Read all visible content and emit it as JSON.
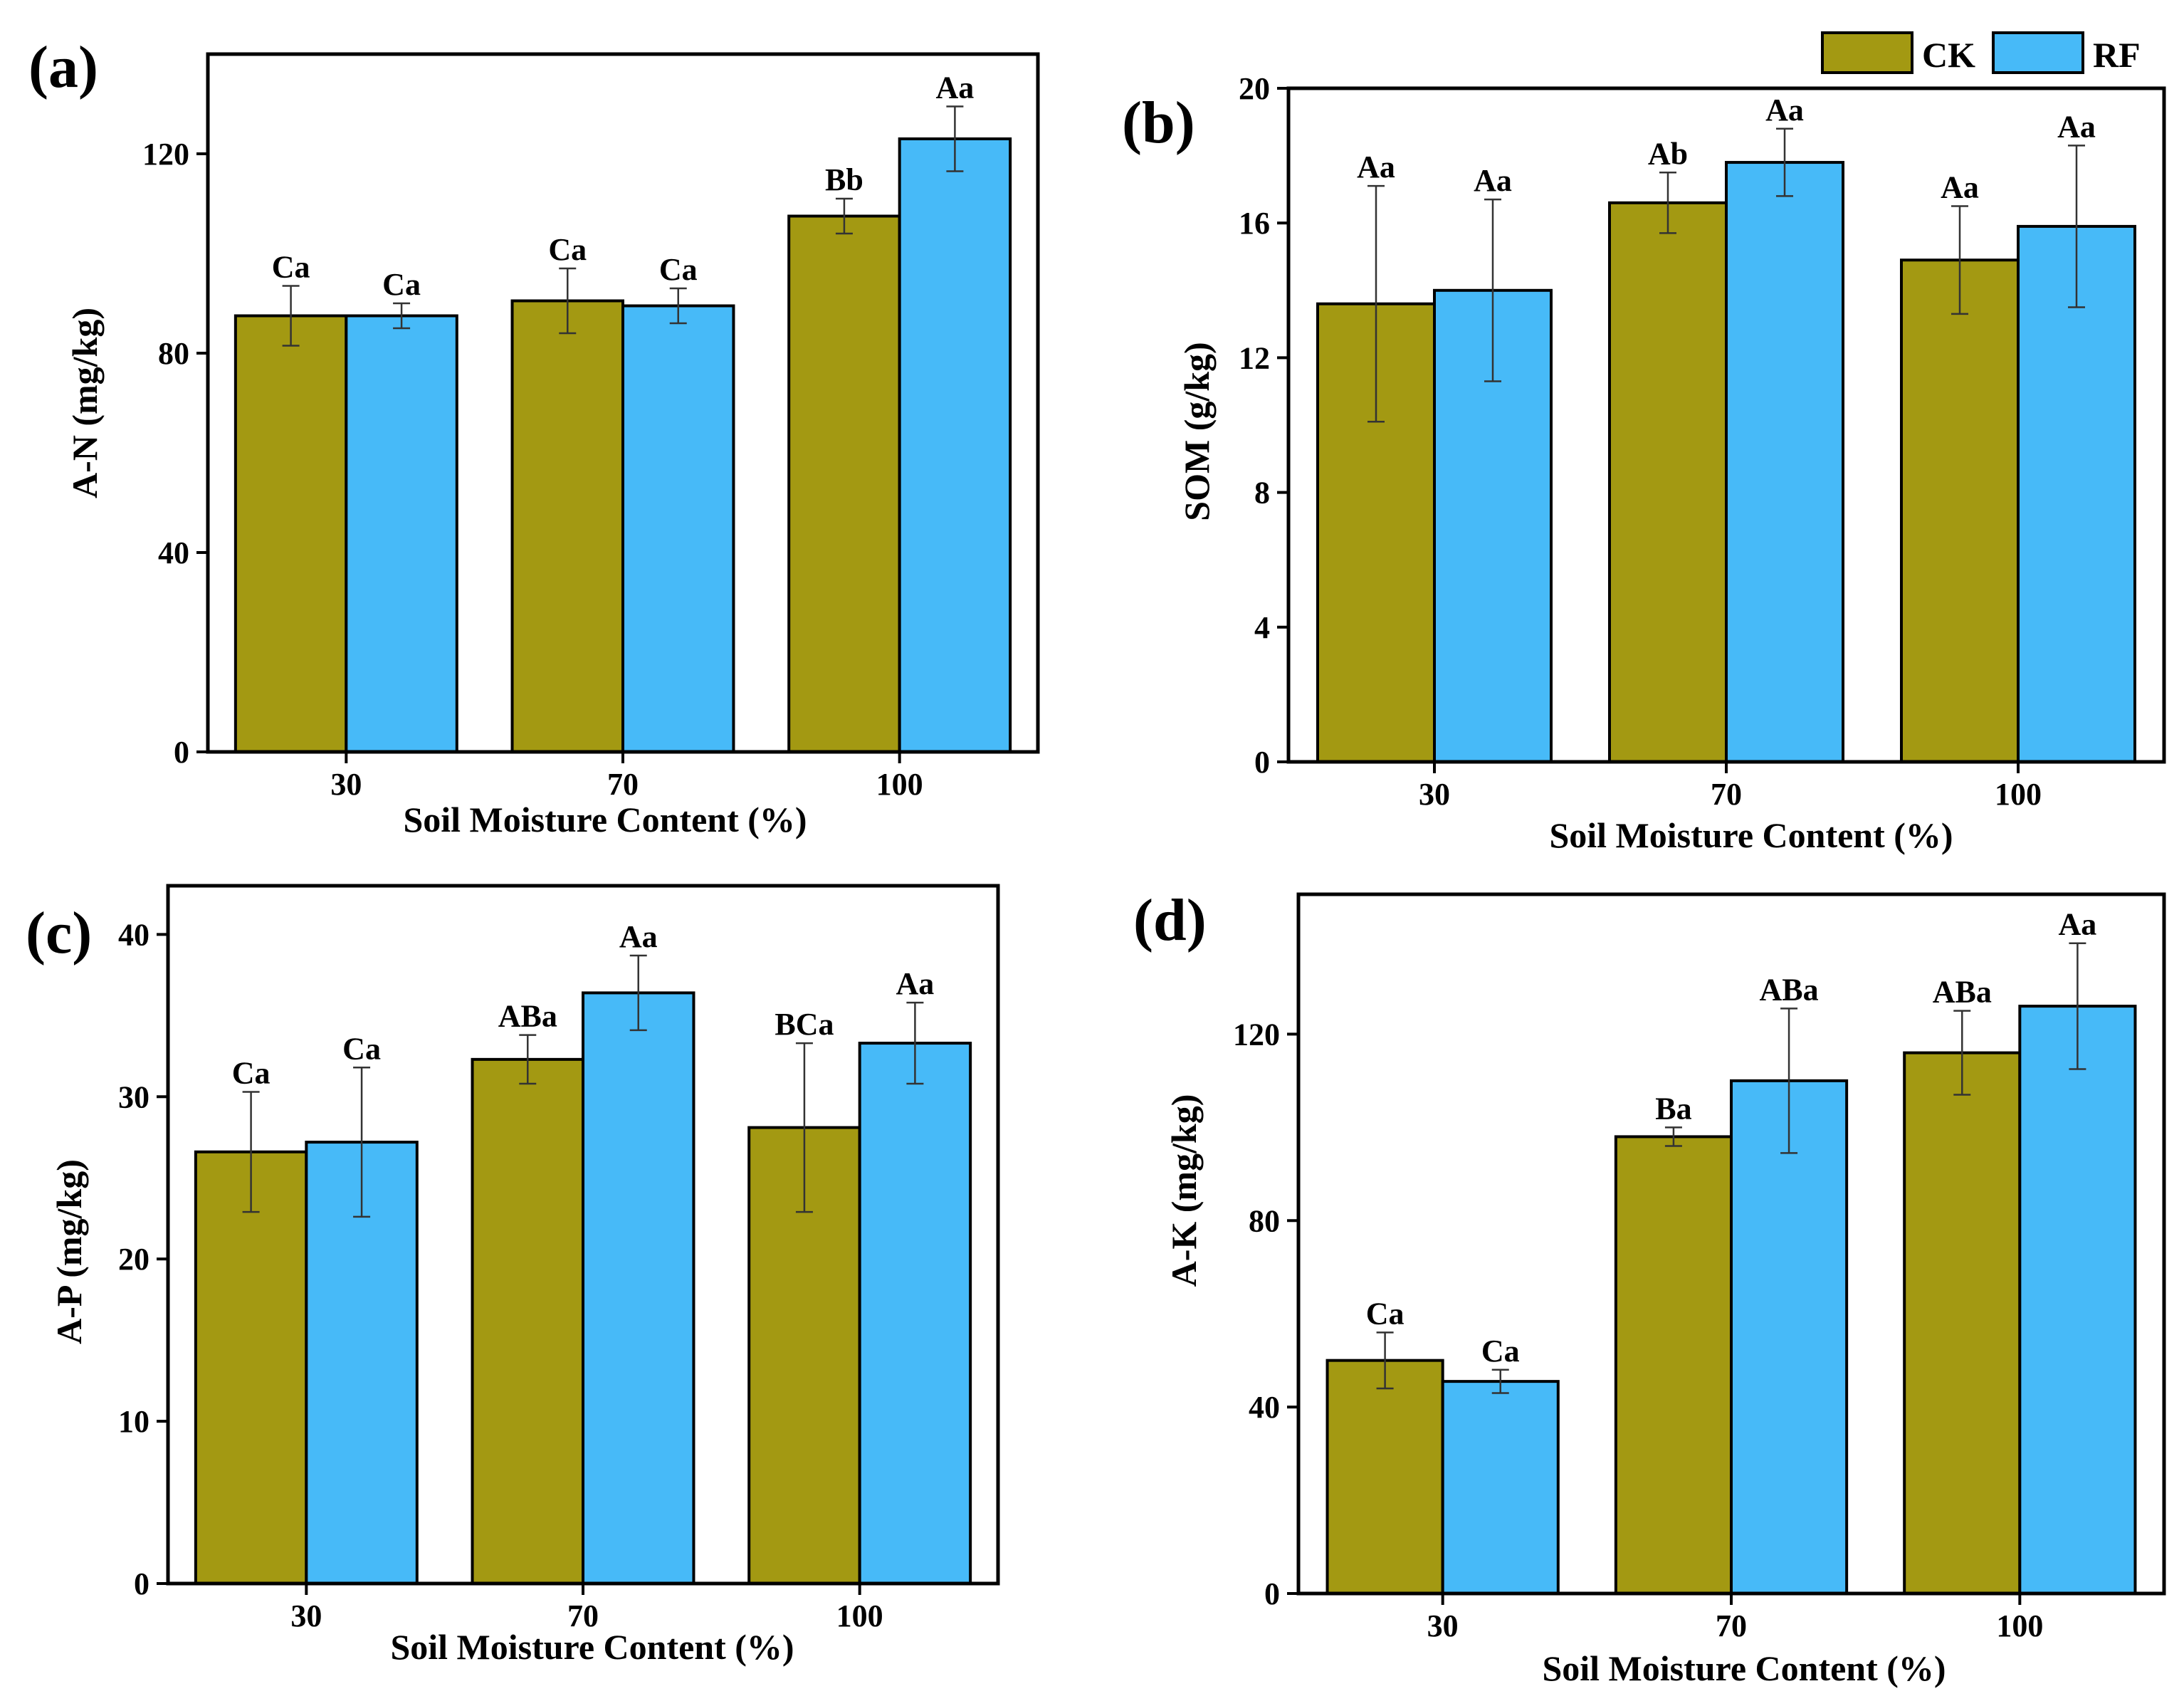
{
  "figure": {
    "legend": [
      {
        "name": "CK",
        "color": "#a39912"
      },
      {
        "name": "RF",
        "color": "#47baf8"
      }
    ]
  },
  "chart_data": [
    {
      "panel": "(a)",
      "type": "bar",
      "title": "",
      "xlabel": "Soil Moisture Content (%)",
      "ylabel": "A-N (mg/kg)",
      "categories": [
        "30",
        "70",
        "100"
      ],
      "ylim": [
        0,
        140
      ],
      "yticks": [
        0,
        40,
        80,
        120
      ],
      "series": [
        {
          "name": "CK",
          "color": "#a39912",
          "values": [
            87.5,
            90.5,
            107.5
          ],
          "errors": [
            6,
            6.5,
            3.5
          ],
          "labels": [
            "Ca",
            "Ca",
            "Bb"
          ]
        },
        {
          "name": "RF",
          "color": "#47baf8",
          "values": [
            87.5,
            89.5,
            123
          ],
          "errors": [
            2.5,
            3.5,
            6.5
          ],
          "labels": [
            "Ca",
            "Ca",
            "Aa"
          ]
        }
      ]
    },
    {
      "panel": "(b)",
      "type": "bar",
      "title": "",
      "xlabel": "Soil Moisture Content (%)",
      "ylabel": "SOM (g/kg)",
      "categories": [
        "30",
        "70",
        "100"
      ],
      "ylim": [
        0,
        20
      ],
      "yticks": [
        0,
        4,
        8,
        12,
        16,
        20
      ],
      "series": [
        {
          "name": "CK",
          "color": "#a39912",
          "values": [
            13.6,
            16.6,
            14.9
          ],
          "errors": [
            3.5,
            0.9,
            1.6
          ],
          "labels": [
            "Aa",
            "Ab",
            "Aa"
          ]
        },
        {
          "name": "RF",
          "color": "#47baf8",
          "values": [
            14.0,
            17.8,
            15.9
          ],
          "errors": [
            2.7,
            1.0,
            2.4
          ],
          "labels": [
            "Aa",
            "Aa",
            "Aa"
          ]
        }
      ]
    },
    {
      "panel": "(c)",
      "type": "bar",
      "title": "",
      "xlabel": "Soil Moisture Content (%)",
      "ylabel": "A-P (mg/kg)",
      "categories": [
        "30",
        "70",
        "100"
      ],
      "ylim": [
        0,
        43
      ],
      "yticks": [
        0,
        10,
        20,
        30,
        40
      ],
      "series": [
        {
          "name": "CK",
          "color": "#a39912",
          "values": [
            26.6,
            32.3,
            28.1
          ],
          "errors": [
            3.7,
            1.5,
            5.2
          ],
          "labels": [
            "Ca",
            "ABa",
            "BCa"
          ]
        },
        {
          "name": "RF",
          "color": "#47baf8",
          "values": [
            27.2,
            36.4,
            33.3
          ],
          "errors": [
            4.6,
            2.3,
            2.5
          ],
          "labels": [
            "Ca",
            "Aa",
            "Aa"
          ]
        }
      ]
    },
    {
      "panel": "(d)",
      "type": "bar",
      "title": "",
      "xlabel": "Soil Moisture Content (%)",
      "ylabel": "A-K (mg/kg)",
      "categories": [
        "30",
        "70",
        "100"
      ],
      "ylim": [
        0,
        150
      ],
      "yticks": [
        0,
        40,
        80,
        120
      ],
      "series": [
        {
          "name": "CK",
          "color": "#a39912",
          "values": [
            50,
            98,
            116
          ],
          "errors": [
            6,
            2,
            9
          ],
          "labels": [
            "Ca",
            "Ba",
            "ABa"
          ]
        },
        {
          "name": "RF",
          "color": "#47baf8",
          "values": [
            45.5,
            110,
            126
          ],
          "errors": [
            2.5,
            15.5,
            13.5
          ],
          "labels": [
            "Ca",
            "ABa",
            "Aa"
          ]
        }
      ]
    }
  ]
}
